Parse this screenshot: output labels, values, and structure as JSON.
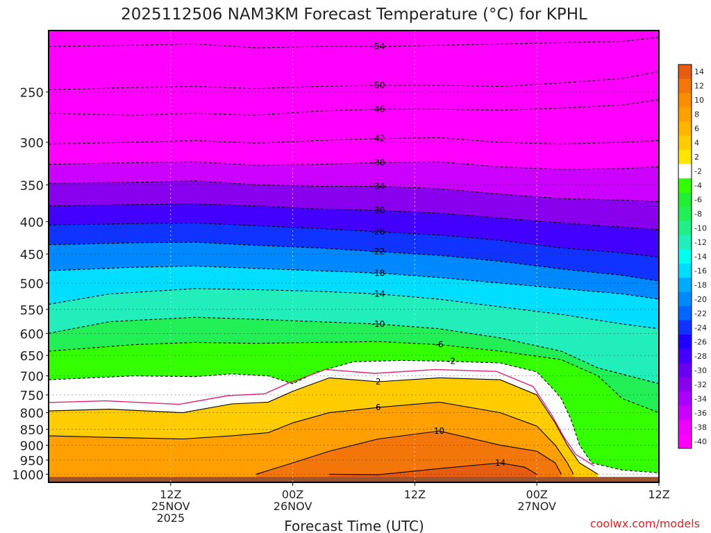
{
  "chart_data": {
    "type": "heatmap",
    "title": "2025112506 NAM3KM Forecast Temperature (°C) for KPHL",
    "xlabel": "Forecast Time (UTC)",
    "ylabel": "",
    "credit": "coolwx.com/models",
    "x_range_hours": [
      -7,
      43
    ],
    "y_axis": {
      "scale": "log-pressure",
      "unit_hint": "hPa",
      "ticks": [
        250,
        300,
        350,
        400,
        450,
        500,
        550,
        600,
        650,
        700,
        750,
        800,
        850,
        900,
        950,
        1000
      ],
      "range": [
        200,
        1030
      ]
    },
    "x_ticks": [
      {
        "hour": 3,
        "lines": [
          "12Z",
          "25NOV",
          "2025"
        ]
      },
      {
        "hour": 13,
        "lines": [
          "00Z",
          "26NOV"
        ]
      },
      {
        "hour": 23,
        "lines": [
          "12Z"
        ]
      },
      {
        "hour": 33,
        "lines": [
          "00Z",
          "27NOV"
        ]
      },
      {
        "hour": 43,
        "lines": [
          "12Z"
        ]
      }
    ],
    "colorbar": {
      "labels": [
        "14",
        "12",
        "10",
        "8",
        "6",
        "4",
        "2",
        "-2",
        "-4",
        "-6",
        "-8",
        "-10",
        "-12",
        "-14",
        "-16",
        "-18",
        "-20",
        "-22",
        "-24",
        "-26",
        "-28",
        "-30",
        "-32",
        "-34",
        "-36",
        "-38",
        "-40"
      ],
      "colors": [
        "#e65c10",
        "#f2760a",
        "#f98c00",
        "#ffa000",
        "#ffb400",
        "#ffcc00",
        "#ffe600",
        "#ffffff",
        "#33ff00",
        "#22ee33",
        "#22ee55",
        "#22ee88",
        "#22eebb",
        "#00ffee",
        "#00ddff",
        "#00aaff",
        "#0088ff",
        "#0066ff",
        "#1133ff",
        "#2200ff",
        "#4400ff",
        "#6600ee",
        "#8800ee",
        "#aa00ff",
        "#cc00ff",
        "#ee00ff",
        "#ff00ff"
      ]
    },
    "ground_color": "#a0522d",
    "isotherms": [
      {
        "label": "-54",
        "points": [
          [
            -7,
            212
          ],
          [
            0,
            211
          ],
          [
            5,
            210
          ],
          [
            10,
            213
          ],
          [
            15,
            212
          ],
          [
            20,
            212
          ],
          [
            25,
            211
          ],
          [
            30,
            210
          ],
          [
            35,
            209
          ],
          [
            40,
            208
          ],
          [
            43,
            205
          ]
        ]
      },
      {
        "label": "-50",
        "points": [
          [
            -7,
            248
          ],
          [
            0,
            246
          ],
          [
            5,
            245
          ],
          [
            10,
            247
          ],
          [
            15,
            245
          ],
          [
            20,
            244
          ],
          [
            25,
            244
          ],
          [
            30,
            245
          ],
          [
            35,
            242
          ],
          [
            40,
            238
          ],
          [
            43,
            232
          ]
        ]
      },
      {
        "label": "-46",
        "points": [
          [
            -7,
            270
          ],
          [
            0,
            272
          ],
          [
            5,
            270
          ],
          [
            10,
            272
          ],
          [
            15,
            268
          ],
          [
            20,
            266
          ],
          [
            25,
            266
          ],
          [
            30,
            267
          ],
          [
            35,
            265
          ],
          [
            40,
            262
          ],
          [
            43,
            257
          ]
        ]
      },
      {
        "label": "-42",
        "points": [
          [
            -7,
            302
          ],
          [
            0,
            300
          ],
          [
            5,
            298
          ],
          [
            10,
            301
          ],
          [
            15,
            298
          ],
          [
            20,
            296
          ],
          [
            25,
            295
          ],
          [
            30,
            300
          ],
          [
            35,
            302
          ],
          [
            40,
            300
          ],
          [
            43,
            298
          ]
        ]
      },
      {
        "label": "-38",
        "points": [
          [
            -7,
            325
          ],
          [
            0,
            323
          ],
          [
            5,
            322
          ],
          [
            10,
            326
          ],
          [
            15,
            325
          ],
          [
            20,
            323
          ],
          [
            25,
            322
          ],
          [
            30,
            328
          ],
          [
            35,
            331
          ],
          [
            40,
            330
          ],
          [
            43,
            328
          ]
        ]
      },
      {
        "label": "-34",
        "points": [
          [
            -7,
            348
          ],
          [
            0,
            347
          ],
          [
            5,
            345
          ],
          [
            10,
            350
          ],
          [
            15,
            352
          ],
          [
            20,
            352
          ],
          [
            25,
            355
          ],
          [
            30,
            362
          ],
          [
            35,
            368
          ],
          [
            40,
            370
          ],
          [
            43,
            372
          ]
        ]
      },
      {
        "label": "-30",
        "points": [
          [
            -7,
            378
          ],
          [
            0,
            376
          ],
          [
            5,
            375
          ],
          [
            10,
            378
          ],
          [
            15,
            382
          ],
          [
            20,
            384
          ],
          [
            25,
            388
          ],
          [
            30,
            395
          ],
          [
            35,
            402
          ],
          [
            40,
            408
          ],
          [
            43,
            412
          ]
        ]
      },
      {
        "label": "-26",
        "points": [
          [
            -7,
            405
          ],
          [
            0,
            403
          ],
          [
            5,
            402
          ],
          [
            10,
            406
          ],
          [
            15,
            410
          ],
          [
            20,
            415
          ],
          [
            25,
            420
          ],
          [
            30,
            428
          ],
          [
            35,
            440
          ],
          [
            40,
            448
          ],
          [
            43,
            455
          ]
        ]
      },
      {
        "label": "-22",
        "points": [
          [
            -7,
            435
          ],
          [
            0,
            432
          ],
          [
            5,
            431
          ],
          [
            10,
            436
          ],
          [
            15,
            440
          ],
          [
            20,
            446
          ],
          [
            25,
            452
          ],
          [
            30,
            462
          ],
          [
            35,
            475
          ],
          [
            40,
            486
          ],
          [
            43,
            496
          ]
        ]
      },
      {
        "label": "-18",
        "points": [
          [
            -7,
            478
          ],
          [
            0,
            472
          ],
          [
            5,
            470
          ],
          [
            10,
            474
          ],
          [
            15,
            478
          ],
          [
            20,
            482
          ],
          [
            25,
            490
          ],
          [
            30,
            500
          ],
          [
            35,
            510
          ],
          [
            40,
            520
          ],
          [
            43,
            530
          ]
        ]
      },
      {
        "label": "-14",
        "points": [
          [
            -7,
            540
          ],
          [
            -2,
            520
          ],
          [
            5,
            510
          ],
          [
            10,
            512
          ],
          [
            15,
            515
          ],
          [
            20,
            520
          ],
          [
            25,
            530
          ],
          [
            30,
            545
          ],
          [
            35,
            560
          ],
          [
            40,
            580
          ],
          [
            43,
            590
          ]
        ]
      },
      {
        "label": "-10",
        "points": [
          [
            -7,
            600
          ],
          [
            -2,
            575
          ],
          [
            5,
            566
          ],
          [
            10,
            570
          ],
          [
            15,
            575
          ],
          [
            20,
            580
          ],
          [
            25,
            590
          ],
          [
            30,
            610
          ],
          [
            35,
            640
          ],
          [
            38,
            680
          ],
          [
            43,
            720
          ]
        ]
      },
      {
        "label": "-6",
        "points": [
          [
            -7,
            640
          ],
          [
            0,
            625
          ],
          [
            5,
            620
          ],
          [
            10,
            622
          ],
          [
            15,
            620
          ],
          [
            20,
            618
          ],
          [
            25,
            625
          ],
          [
            30,
            640
          ],
          [
            35,
            660
          ],
          [
            38,
            700
          ],
          [
            40,
            760
          ],
          [
            43,
            800
          ]
        ]
      },
      {
        "label": "-2",
        "points": [
          [
            -7,
            710
          ],
          [
            0,
            700
          ],
          [
            5,
            702
          ],
          [
            8,
            695
          ],
          [
            11,
            700
          ],
          [
            13,
            720
          ],
          [
            15,
            690
          ],
          [
            18,
            665
          ],
          [
            22,
            662
          ],
          [
            26,
            664
          ],
          [
            30,
            668
          ],
          [
            33,
            690
          ],
          [
            34.5,
            740
          ],
          [
            35,
            760
          ],
          [
            35.8,
            820
          ],
          [
            36.5,
            900
          ],
          [
            37.5,
            960
          ],
          [
            40,
            985
          ],
          [
            43,
            995
          ]
        ]
      },
      {
        "label": "2",
        "points": [
          [
            -7,
            795
          ],
          [
            -2,
            790
          ],
          [
            4,
            800
          ],
          [
            8,
            775
          ],
          [
            11,
            770
          ],
          [
            13,
            740
          ],
          [
            16,
            705
          ],
          [
            20,
            715
          ],
          [
            25,
            705
          ],
          [
            30,
            710
          ],
          [
            33,
            750
          ],
          [
            34.5,
            830
          ],
          [
            35.5,
            900
          ],
          [
            36.5,
            960
          ],
          [
            38,
            1000
          ]
        ]
      },
      {
        "label": "6",
        "points": [
          [
            -7,
            870
          ],
          [
            -2,
            875
          ],
          [
            4,
            880
          ],
          [
            8,
            870
          ],
          [
            11,
            860
          ],
          [
            13,
            830
          ],
          [
            16,
            800
          ],
          [
            20,
            785
          ],
          [
            25,
            770
          ],
          [
            30,
            800
          ],
          [
            33,
            840
          ],
          [
            34.5,
            900
          ],
          [
            35.5,
            960
          ],
          [
            36,
            1000
          ]
        ]
      },
      {
        "label": "10",
        "points": [
          [
            10,
            1000
          ],
          [
            13,
            960
          ],
          [
            16,
            920
          ],
          [
            20,
            880
          ],
          [
            25,
            855
          ],
          [
            30,
            900
          ],
          [
            33,
            920
          ],
          [
            34.5,
            960
          ],
          [
            35,
            1000
          ]
        ]
      },
      {
        "label": "14",
        "points": [
          [
            16,
            1000
          ],
          [
            20,
            1002
          ],
          [
            25,
            980
          ],
          [
            30,
            960
          ],
          [
            32,
            975
          ],
          [
            33,
            1000
          ]
        ]
      }
    ]
  }
}
